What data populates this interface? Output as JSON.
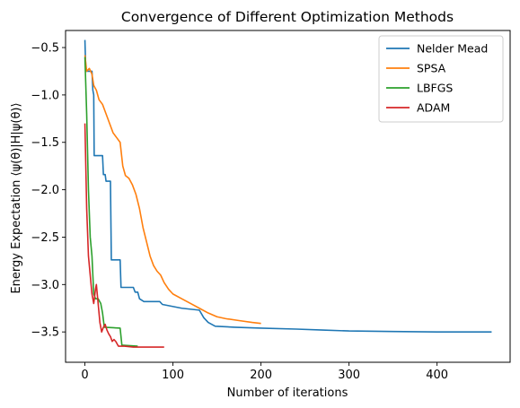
{
  "chart_data": {
    "type": "line",
    "title": "Convergence of Different Optimization Methods",
    "xlabel": "Number of iterations",
    "ylabel": "Energy Expectation ⟨ψ(θ)|H|ψ(θ)⟩",
    "xlim": [
      -22,
      483
    ],
    "ylim": [
      -3.82,
      -0.32
    ],
    "xticks": [
      0,
      100,
      200,
      300,
      400
    ],
    "xtick_labels": [
      "0",
      "100",
      "200",
      "300",
      "400"
    ],
    "yticks": [
      -0.5,
      -1.0,
      -1.5,
      -2.0,
      -2.5,
      -3.0,
      -3.5
    ],
    "ytick_labels": [
      "−0.5",
      "−1.0",
      "−1.5",
      "−2.0",
      "−2.5",
      "−3.0",
      "−3.5"
    ],
    "grid": false,
    "legend_position": "top-right",
    "series": [
      {
        "name": "Nelder Mead",
        "color": "#1f77b4",
        "points": [
          [
            0,
            -0.42
          ],
          [
            1,
            -0.75
          ],
          [
            8,
            -0.75
          ],
          [
            9,
            -0.95
          ],
          [
            10,
            -1.0
          ],
          [
            10.5,
            -1.64
          ],
          [
            20,
            -1.64
          ],
          [
            21,
            -1.84
          ],
          [
            23,
            -1.84
          ],
          [
            24,
            -1.91
          ],
          [
            29,
            -1.91
          ],
          [
            30,
            -2.74
          ],
          [
            40,
            -2.74
          ],
          [
            41,
            -3.03
          ],
          [
            55,
            -3.03
          ],
          [
            57,
            -3.08
          ],
          [
            60,
            -3.08
          ],
          [
            62,
            -3.15
          ],
          [
            67,
            -3.18
          ],
          [
            85,
            -3.18
          ],
          [
            88,
            -3.21
          ],
          [
            110,
            -3.25
          ],
          [
            130,
            -3.27
          ],
          [
            135,
            -3.35
          ],
          [
            140,
            -3.4
          ],
          [
            148,
            -3.44
          ],
          [
            170,
            -3.45
          ],
          [
            200,
            -3.46
          ],
          [
            240,
            -3.47
          ],
          [
            270,
            -3.48
          ],
          [
            300,
            -3.49
          ],
          [
            350,
            -3.495
          ],
          [
            400,
            -3.5
          ],
          [
            462,
            -3.5
          ]
        ]
      },
      {
        "name": "SPSA",
        "color": "#ff7f0e",
        "points": [
          [
            0,
            -0.58
          ],
          [
            2,
            -0.75
          ],
          [
            5,
            -0.72
          ],
          [
            8,
            -0.78
          ],
          [
            10,
            -0.9
          ],
          [
            13,
            -0.95
          ],
          [
            16,
            -1.05
          ],
          [
            20,
            -1.1
          ],
          [
            24,
            -1.2
          ],
          [
            28,
            -1.3
          ],
          [
            32,
            -1.4
          ],
          [
            36,
            -1.45
          ],
          [
            40,
            -1.5
          ],
          [
            43,
            -1.75
          ],
          [
            46,
            -1.85
          ],
          [
            50,
            -1.88
          ],
          [
            54,
            -1.95
          ],
          [
            58,
            -2.05
          ],
          [
            62,
            -2.2
          ],
          [
            66,
            -2.4
          ],
          [
            70,
            -2.55
          ],
          [
            74,
            -2.7
          ],
          [
            78,
            -2.8
          ],
          [
            82,
            -2.86
          ],
          [
            86,
            -2.9
          ],
          [
            90,
            -2.98
          ],
          [
            95,
            -3.05
          ],
          [
            100,
            -3.1
          ],
          [
            110,
            -3.15
          ],
          [
            120,
            -3.2
          ],
          [
            130,
            -3.25
          ],
          [
            140,
            -3.3
          ],
          [
            150,
            -3.34
          ],
          [
            160,
            -3.36
          ],
          [
            175,
            -3.38
          ],
          [
            190,
            -3.4
          ],
          [
            200,
            -3.41
          ]
        ]
      },
      {
        "name": "LBFGS",
        "color": "#2ca02c",
        "points": [
          [
            0,
            -0.6
          ],
          [
            2,
            -1.2
          ],
          [
            4,
            -2.0
          ],
          [
            6,
            -2.5
          ],
          [
            8,
            -2.7
          ],
          [
            9,
            -2.9
          ],
          [
            10,
            -3.1
          ],
          [
            12,
            -3.15
          ],
          [
            15,
            -3.15
          ],
          [
            18,
            -3.2
          ],
          [
            20,
            -3.3
          ],
          [
            22,
            -3.45
          ],
          [
            40,
            -3.46
          ],
          [
            42,
            -3.64
          ],
          [
            60,
            -3.65
          ]
        ]
      },
      {
        "name": "ADAM",
        "color": "#d62728",
        "points": [
          [
            0,
            -1.3
          ],
          [
            2,
            -2.2
          ],
          [
            4,
            -2.7
          ],
          [
            6,
            -2.9
          ],
          [
            8,
            -3.1
          ],
          [
            10,
            -3.2
          ],
          [
            12,
            -3.05
          ],
          [
            13,
            -3.0
          ],
          [
            15,
            -3.2
          ],
          [
            17,
            -3.4
          ],
          [
            19,
            -3.5
          ],
          [
            21,
            -3.45
          ],
          [
            23,
            -3.42
          ],
          [
            25,
            -3.48
          ],
          [
            27,
            -3.52
          ],
          [
            29,
            -3.55
          ],
          [
            31,
            -3.6
          ],
          [
            33,
            -3.58
          ],
          [
            35,
            -3.6
          ],
          [
            38,
            -3.65
          ],
          [
            45,
            -3.65
          ],
          [
            55,
            -3.66
          ],
          [
            70,
            -3.66
          ],
          [
            90,
            -3.66
          ]
        ]
      }
    ]
  }
}
